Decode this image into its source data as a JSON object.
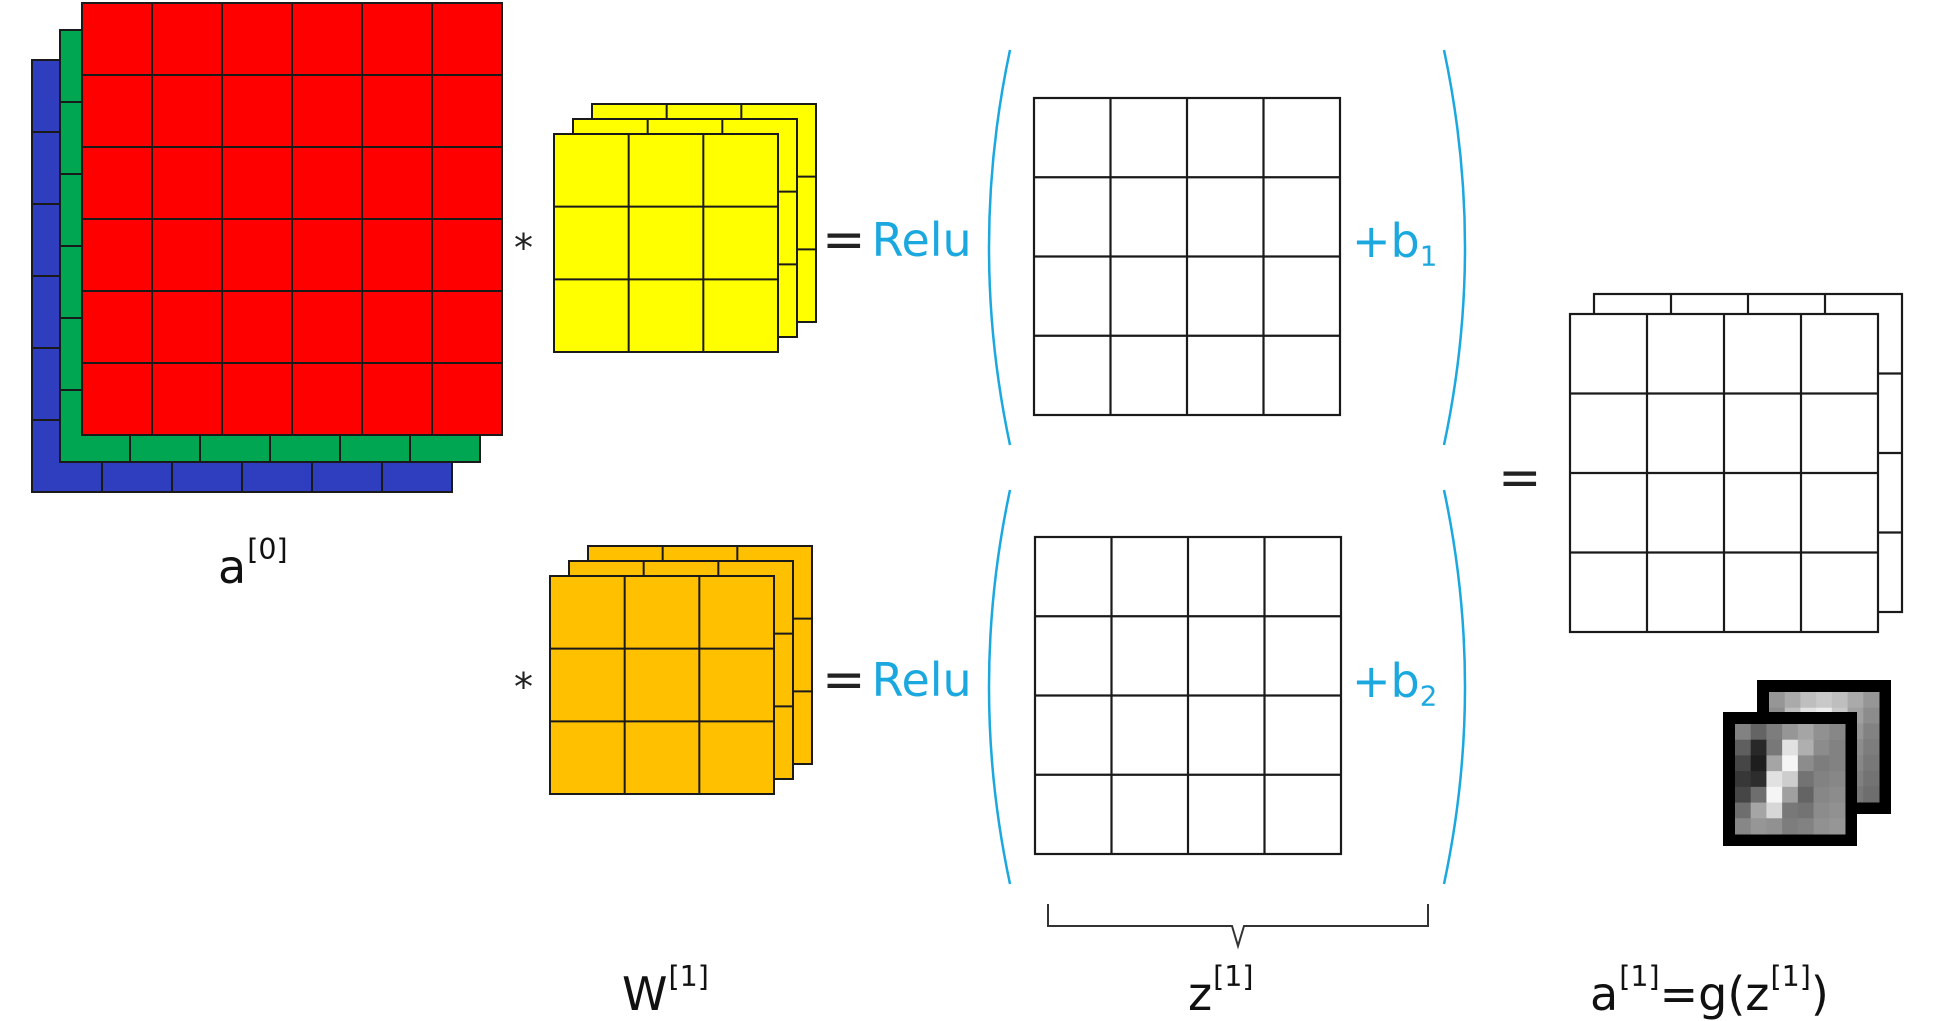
{
  "input_volume": {
    "label_base": "a",
    "label_sup": "[0]",
    "channel_colors": [
      "#ff0000",
      "#00a651",
      "#2e3ebf"
    ],
    "rows": 6,
    "cols": 6
  },
  "filters": [
    {
      "operator": "*",
      "color": "#ffff00",
      "rows": 3,
      "cols": 3,
      "depth": 3,
      "equals": "=",
      "activation": "Relu",
      "bias_prefix": "+b",
      "bias_sub": "1",
      "output_rows": 4,
      "output_cols": 4
    },
    {
      "operator": "*",
      "color": "#ffc000",
      "rows": 3,
      "cols": 3,
      "depth": 3,
      "equals": "=",
      "activation": "Relu",
      "bias_prefix": "+b",
      "bias_sub": "2",
      "output_rows": 4,
      "output_cols": 4
    }
  ],
  "weights_label": {
    "base": "W",
    "sup": "[1]"
  },
  "z_label": {
    "base": "z",
    "sup": "[1]"
  },
  "result": {
    "equals": "=",
    "rows": 4,
    "cols": 4,
    "depth": 2,
    "label_base": "a",
    "label_sup": "[1]",
    "label_mid": "=g(z",
    "label_sup2": "[1]",
    "label_end": ")"
  },
  "colors": {
    "accent_blue": "#1aa8df",
    "grid_line": "#1a1a1a"
  }
}
